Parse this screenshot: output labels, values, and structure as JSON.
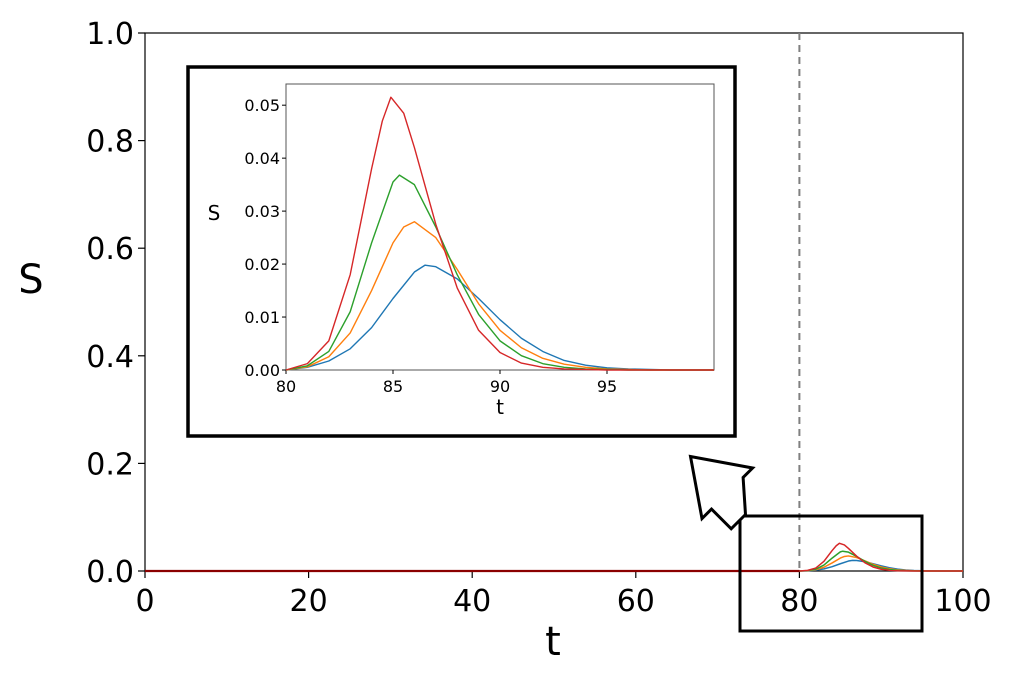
{
  "chart_data": [
    {
      "type": "line",
      "panel": "main",
      "xlabel": "t",
      "ylabel": "S",
      "xlim": [
        0,
        100
      ],
      "ylim": [
        0,
        1.0
      ],
      "xticks": [
        0,
        20,
        40,
        60,
        80,
        100
      ],
      "xtick_labels": [
        "0",
        "20",
        "40",
        "60",
        "80",
        "100"
      ],
      "yticks": [
        0,
        0.2,
        0.4,
        0.6,
        0.8,
        1.0
      ],
      "ytick_labels": [
        "0.0",
        "0.2",
        "0.4",
        "0.6",
        "0.8",
        "1.0"
      ],
      "vertical_reference_line": {
        "x": 80,
        "style": "dashed",
        "color": "#808080"
      },
      "zoom_region": {
        "x": [
          73,
          95
        ],
        "y": [
          -0.11,
          0.105
        ]
      },
      "baseline_color": "#8b0000",
      "grid": false
    },
    {
      "type": "line",
      "panel": "inset",
      "xlabel": "t",
      "ylabel": "S",
      "xlim": [
        80,
        100
      ],
      "ylim": [
        0,
        0.054
      ],
      "xticks": [
        80,
        85,
        90,
        95
      ],
      "xtick_labels": [
        "80",
        "85",
        "90",
        "95"
      ],
      "yticks": [
        0,
        0.01,
        0.02,
        0.03,
        0.04,
        0.05
      ],
      "ytick_labels": [
        "0.00",
        "0.01",
        "0.02",
        "0.03",
        "0.04",
        "0.05"
      ],
      "grid": false,
      "series": [
        {
          "color": "#1f77b4",
          "x": [
            80,
            81,
            82,
            83,
            84,
            85,
            86,
            86.5,
            87,
            88,
            89,
            90,
            91,
            92,
            93,
            94,
            95,
            96,
            97,
            98,
            100
          ],
          "values": [
            0.0,
            0.0005,
            0.0017,
            0.004,
            0.008,
            0.0135,
            0.0185,
            0.0198,
            0.0195,
            0.0172,
            0.0135,
            0.0095,
            0.006,
            0.0035,
            0.0018,
            0.0009,
            0.0004,
            0.0002,
            0.0001,
            0.0,
            0.0
          ]
        },
        {
          "color": "#ff7f0e",
          "x": [
            80,
            81,
            82,
            83,
            84,
            85,
            85.5,
            86,
            87,
            88,
            89,
            90,
            91,
            92,
            93,
            94,
            95,
            96,
            97,
            98,
            100
          ],
          "values": [
            0.0,
            0.0006,
            0.0025,
            0.007,
            0.015,
            0.024,
            0.027,
            0.028,
            0.025,
            0.019,
            0.0125,
            0.0075,
            0.0042,
            0.0022,
            0.0011,
            0.0005,
            0.0002,
            0.0001,
            0.0,
            0.0,
            0.0
          ]
        },
        {
          "color": "#2ca02c",
          "x": [
            80,
            81,
            82,
            83,
            84,
            85,
            85.3,
            86,
            87,
            88,
            89,
            90,
            91,
            92,
            93,
            94,
            95,
            96,
            97,
            100
          ],
          "values": [
            0.0,
            0.0008,
            0.0035,
            0.011,
            0.024,
            0.0355,
            0.0368,
            0.035,
            0.027,
            0.018,
            0.0105,
            0.0055,
            0.0027,
            0.0012,
            0.0005,
            0.0002,
            0.0001,
            0.0,
            0.0,
            0.0
          ]
        },
        {
          "color": "#d62728",
          "x": [
            80,
            81,
            82,
            83,
            84,
            84.5,
            84.9,
            85.5,
            86,
            87,
            88,
            89,
            90,
            91,
            92,
            93,
            94,
            95,
            96,
            100
          ],
          "values": [
            0.0,
            0.0012,
            0.0055,
            0.018,
            0.038,
            0.047,
            0.0515,
            0.0485,
            0.042,
            0.0275,
            0.0155,
            0.0075,
            0.0033,
            0.0013,
            0.0005,
            0.0002,
            0.0001,
            0.0,
            0.0,
            0.0
          ]
        }
      ]
    }
  ]
}
